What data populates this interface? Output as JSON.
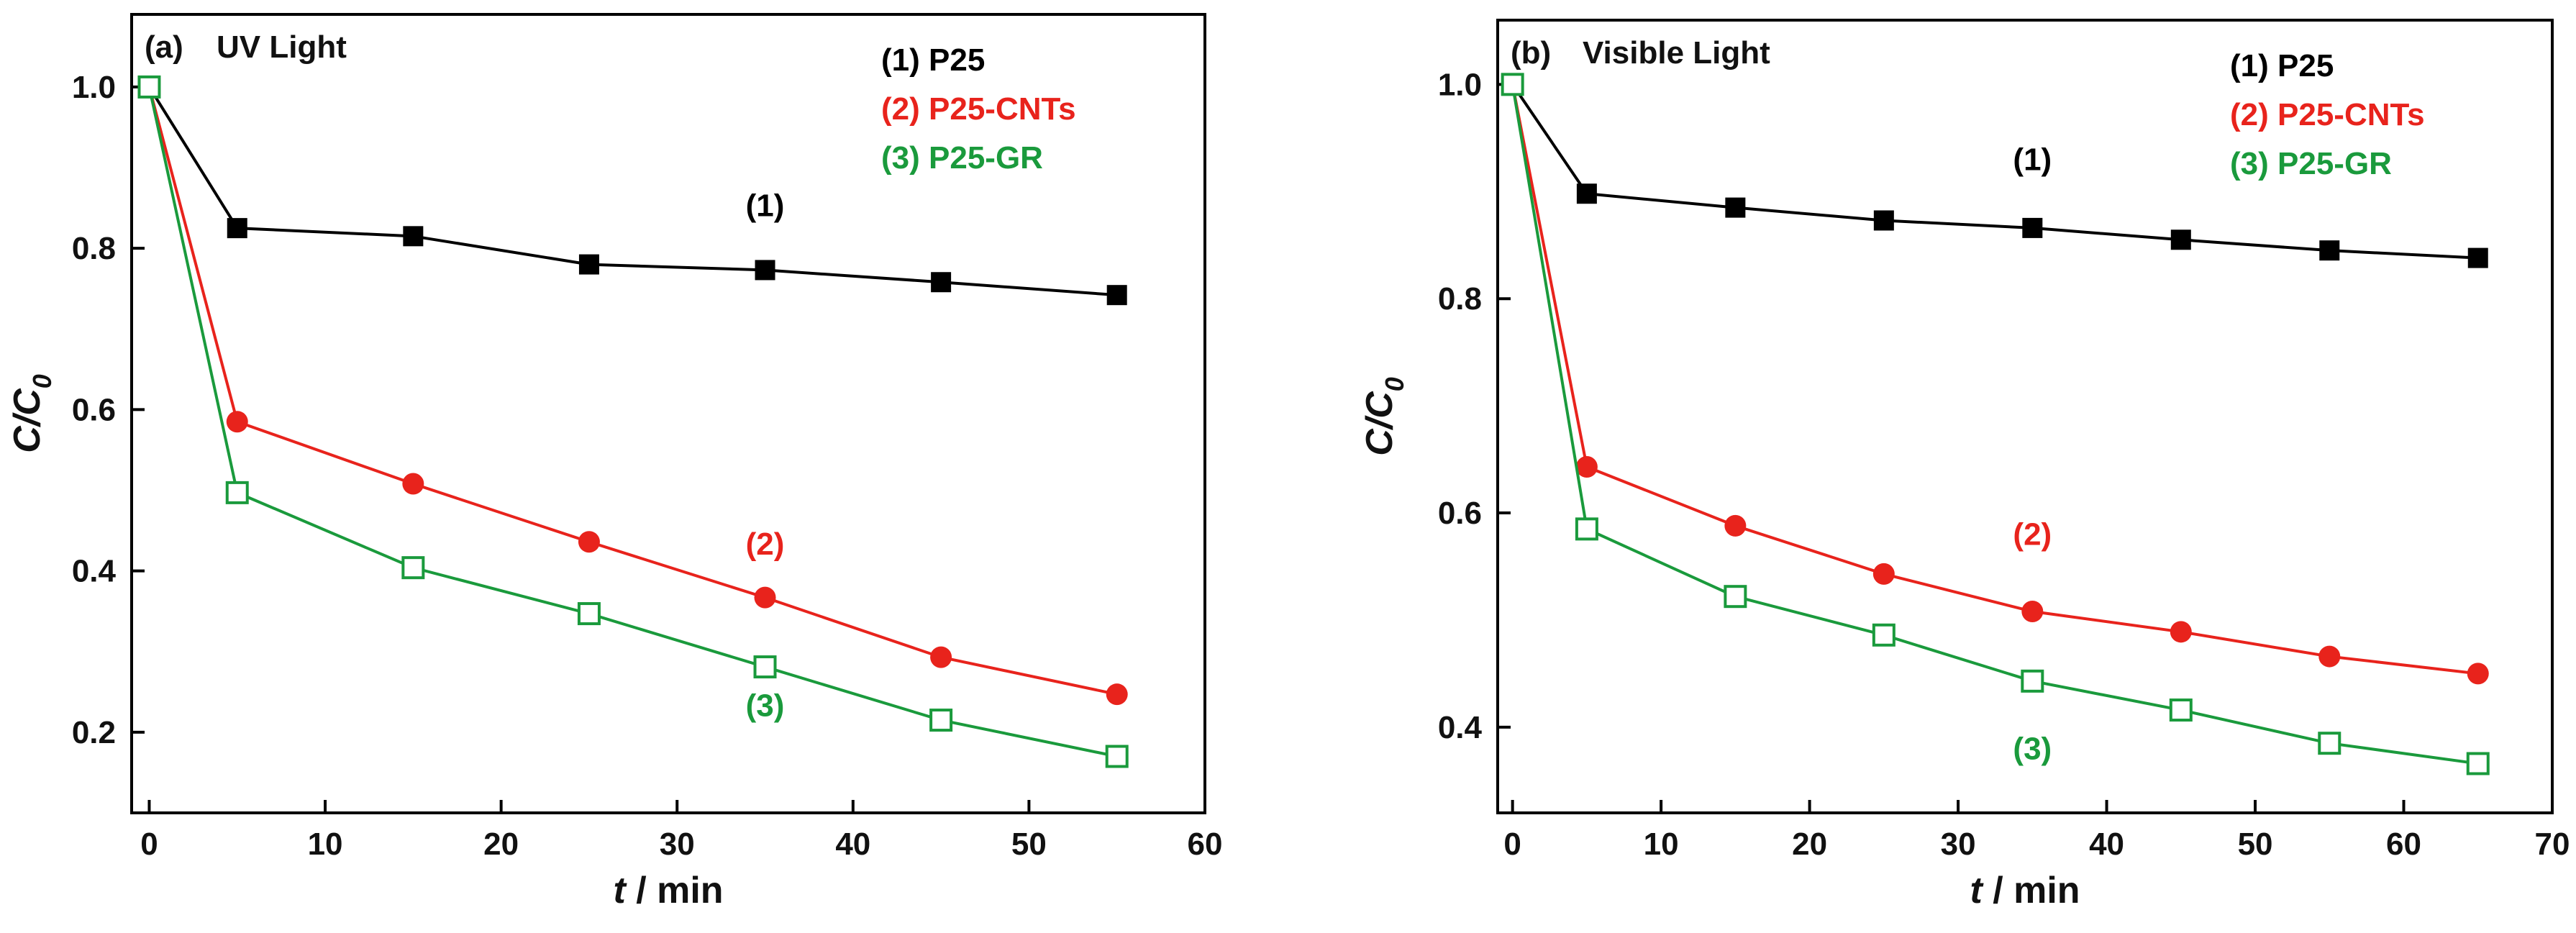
{
  "chart_data": [
    {
      "type": "line",
      "panel_label": "(a)",
      "title": "UV Light",
      "xlabel": "t",
      "xlabel_unit": "/ min",
      "ylabel": "C/C",
      "ylabel_sub": "0",
      "xlim": [
        -1,
        60
      ],
      "ylim": [
        0.1,
        1.09
      ],
      "xticks": [
        0,
        10,
        20,
        30,
        40,
        50,
        60
      ],
      "yticks": [
        0.2,
        0.4,
        0.6,
        0.8,
        1.0
      ],
      "ytick_labels": [
        "0.2",
        "0.4",
        "0.6",
        "0.8",
        "1.0"
      ],
      "legend_position": "top-right",
      "series": [
        {
          "name": "(1) P25",
          "label": "(1)",
          "color": "#000000",
          "marker": "filled-square",
          "x": [
            0,
            5,
            15,
            25,
            35,
            45,
            55
          ],
          "values": [
            1.0,
            0.825,
            0.815,
            0.78,
            0.773,
            0.758,
            0.742
          ],
          "label_at": [
            35,
            0.84
          ]
        },
        {
          "name": "(2) P25-CNTs",
          "label": "(2)",
          "color": "#e8231c",
          "marker": "filled-circle",
          "x": [
            0,
            5,
            15,
            25,
            35,
            45,
            55
          ],
          "values": [
            1.0,
            0.585,
            0.508,
            0.436,
            0.367,
            0.293,
            0.247
          ],
          "label_at": [
            35,
            0.42
          ]
        },
        {
          "name": "(3) P25-GR",
          "label": "(3)",
          "color": "#1a9a3c",
          "marker": "open-square",
          "x": [
            0,
            5,
            15,
            25,
            35,
            45,
            55
          ],
          "values": [
            1.0,
            0.497,
            0.404,
            0.347,
            0.281,
            0.215,
            0.17
          ],
          "label_at": [
            35,
            0.22
          ]
        }
      ]
    },
    {
      "type": "line",
      "panel_label": "(b)",
      "title": "Visible Light",
      "xlabel": "t",
      "xlabel_unit": "/ min",
      "ylabel": "C/C",
      "ylabel_sub": "0",
      "xlim": [
        -1,
        70
      ],
      "ylim": [
        0.32,
        1.06
      ],
      "xticks": [
        0,
        10,
        20,
        30,
        40,
        50,
        60,
        70
      ],
      "xtick_labels": [
        "0",
        "10",
        "20",
        "30",
        "40",
        "50",
        "60",
        "70"
      ],
      "yticks": [
        0.4,
        0.6,
        0.8,
        1.0
      ],
      "ytick_labels": [
        "0.4",
        "0.6",
        "0.8",
        "1.0"
      ],
      "legend_position": "top-right",
      "series": [
        {
          "name": "(1) P25",
          "label": "(1)",
          "color": "#000000",
          "marker": "filled-square",
          "x": [
            0,
            5,
            15,
            25,
            35,
            45,
            55,
            65
          ],
          "values": [
            1.0,
            0.898,
            0.885,
            0.873,
            0.866,
            0.855,
            0.845,
            0.838
          ],
          "label_at": [
            35,
            0.92
          ]
        },
        {
          "name": "(2) P25-CNTs",
          "label": "(2)",
          "color": "#e8231c",
          "marker": "filled-circle",
          "x": [
            0,
            5,
            15,
            25,
            35,
            45,
            55,
            65
          ],
          "values": [
            1.0,
            0.643,
            0.588,
            0.543,
            0.508,
            0.489,
            0.466,
            0.45
          ],
          "label_at": [
            35,
            0.57
          ]
        },
        {
          "name": "(3) P25-GR",
          "label": "(3)",
          "color": "#1a9a3c",
          "marker": "open-square",
          "x": [
            0,
            5,
            15,
            25,
            35,
            45,
            55,
            65
          ],
          "values": [
            1.0,
            0.585,
            0.522,
            0.486,
            0.443,
            0.416,
            0.385,
            0.366
          ],
          "label_at": [
            35,
            0.37
          ]
        }
      ]
    }
  ]
}
